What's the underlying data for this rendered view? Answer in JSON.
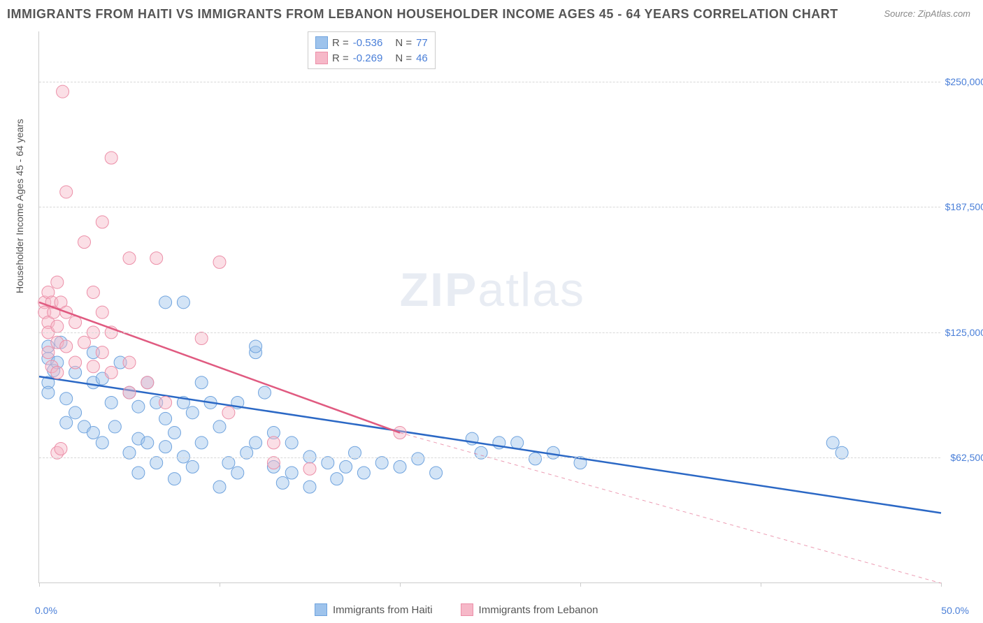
{
  "title": "IMMIGRANTS FROM HAITI VS IMMIGRANTS FROM LEBANON HOUSEHOLDER INCOME AGES 45 - 64 YEARS CORRELATION CHART",
  "source": "Source: ZipAtlas.com",
  "watermark": "ZIPatlas",
  "ylabel": "Householder Income Ages 45 - 64 years",
  "chart": {
    "type": "scatter",
    "xlim": [
      0,
      50
    ],
    "ylim": [
      0,
      275000
    ],
    "x_ticks": [
      0,
      10,
      20,
      30,
      40,
      50
    ],
    "y_gridlines": [
      62500,
      125000,
      187500,
      250000
    ],
    "y_tick_labels": [
      "$62,500",
      "$125,000",
      "$187,500",
      "$250,000"
    ],
    "x_min_label": "0.0%",
    "x_max_label": "50.0%",
    "background_color": "#ffffff",
    "grid_color": "#d8d8d8",
    "axis_color": "#cccccc",
    "marker_radius": 9,
    "marker_opacity": 0.45,
    "trend_line_width": 2.5,
    "series": [
      {
        "name": "Immigrants from Haiti",
        "fill_color": "#9ec3ec",
        "stroke_color": "#6fa3de",
        "line_color": "#2b68c5",
        "R": "-0.536",
        "N": "77",
        "trend": {
          "x1": 0,
          "y1": 103000,
          "x2": 50,
          "y2": 35000,
          "dash_after_x": 50
        },
        "points": [
          [
            0.5,
            112000
          ],
          [
            0.5,
            100000
          ],
          [
            0.5,
            95000
          ],
          [
            0.5,
            118000
          ],
          [
            0.8,
            106000
          ],
          [
            1.0,
            110000
          ],
          [
            1.2,
            120000
          ],
          [
            1.5,
            92000
          ],
          [
            1.5,
            80000
          ],
          [
            2.0,
            105000
          ],
          [
            2.0,
            85000
          ],
          [
            2.5,
            78000
          ],
          [
            3.0,
            100000
          ],
          [
            3.0,
            75000
          ],
          [
            3.0,
            115000
          ],
          [
            3.5,
            70000
          ],
          [
            3.5,
            102000
          ],
          [
            4.0,
            90000
          ],
          [
            4.2,
            78000
          ],
          [
            4.5,
            110000
          ],
          [
            5.0,
            95000
          ],
          [
            5.0,
            65000
          ],
          [
            5.5,
            88000
          ],
          [
            5.5,
            72000
          ],
          [
            5.5,
            55000
          ],
          [
            6.0,
            100000
          ],
          [
            6.0,
            70000
          ],
          [
            6.5,
            90000
          ],
          [
            6.5,
            60000
          ],
          [
            7.0,
            82000
          ],
          [
            7.0,
            68000
          ],
          [
            7.0,
            140000
          ],
          [
            7.5,
            75000
          ],
          [
            7.5,
            52000
          ],
          [
            8.0,
            90000
          ],
          [
            8.0,
            63000
          ],
          [
            8.0,
            140000
          ],
          [
            8.5,
            85000
          ],
          [
            8.5,
            58000
          ],
          [
            9.0,
            100000
          ],
          [
            9.0,
            70000
          ],
          [
            9.5,
            90000
          ],
          [
            10.0,
            78000
          ],
          [
            10.0,
            48000
          ],
          [
            10.5,
            60000
          ],
          [
            11.0,
            90000
          ],
          [
            11.0,
            55000
          ],
          [
            11.5,
            65000
          ],
          [
            12.0,
            115000
          ],
          [
            12.0,
            118000
          ],
          [
            12.0,
            70000
          ],
          [
            12.5,
            95000
          ],
          [
            13.0,
            58000
          ],
          [
            13.0,
            75000
          ],
          [
            13.5,
            50000
          ],
          [
            14.0,
            55000
          ],
          [
            14.0,
            70000
          ],
          [
            15.0,
            63000
          ],
          [
            15.0,
            48000
          ],
          [
            16.0,
            60000
          ],
          [
            16.5,
            52000
          ],
          [
            17.0,
            58000
          ],
          [
            17.5,
            65000
          ],
          [
            18.0,
            55000
          ],
          [
            19.0,
            60000
          ],
          [
            20.0,
            58000
          ],
          [
            21.0,
            62000
          ],
          [
            22.0,
            55000
          ],
          [
            24.0,
            72000
          ],
          [
            24.5,
            65000
          ],
          [
            25.5,
            70000
          ],
          [
            26.5,
            70000
          ],
          [
            27.5,
            62000
          ],
          [
            28.5,
            65000
          ],
          [
            30.0,
            60000
          ],
          [
            44.0,
            70000
          ],
          [
            44.5,
            65000
          ]
        ]
      },
      {
        "name": "Immigrants from Lebanon",
        "fill_color": "#f6b8c8",
        "stroke_color": "#ec8fa8",
        "line_color": "#e05a80",
        "R": "-0.269",
        "N": "46",
        "trend": {
          "x1": 0,
          "y1": 140000,
          "x2": 20,
          "y2": 75000,
          "dash_after_x": 20,
          "dash_x2": 50,
          "dash_y2": 0
        },
        "points": [
          [
            0.3,
            140000
          ],
          [
            0.3,
            135000
          ],
          [
            0.5,
            145000
          ],
          [
            0.5,
            130000
          ],
          [
            0.5,
            125000
          ],
          [
            0.5,
            115000
          ],
          [
            0.7,
            140000
          ],
          [
            0.7,
            108000
          ],
          [
            0.8,
            135000
          ],
          [
            1.0,
            128000
          ],
          [
            1.0,
            120000
          ],
          [
            1.0,
            105000
          ],
          [
            1.0,
            150000
          ],
          [
            1.0,
            65000
          ],
          [
            1.2,
            67000
          ],
          [
            1.2,
            140000
          ],
          [
            1.5,
            118000
          ],
          [
            1.5,
            135000
          ],
          [
            1.5,
            195000
          ],
          [
            1.3,
            245000
          ],
          [
            2.0,
            130000
          ],
          [
            2.0,
            110000
          ],
          [
            2.5,
            120000
          ],
          [
            2.5,
            170000
          ],
          [
            3.0,
            125000
          ],
          [
            3.0,
            108000
          ],
          [
            3.0,
            145000
          ],
          [
            3.5,
            115000
          ],
          [
            3.5,
            135000
          ],
          [
            3.5,
            180000
          ],
          [
            4.0,
            105000
          ],
          [
            4.0,
            212000
          ],
          [
            4.0,
            125000
          ],
          [
            5.0,
            110000
          ],
          [
            5.0,
            95000
          ],
          [
            5.0,
            162000
          ],
          [
            6.0,
            100000
          ],
          [
            6.5,
            162000
          ],
          [
            7.0,
            90000
          ],
          [
            9.0,
            122000
          ],
          [
            10.0,
            160000
          ],
          [
            10.5,
            85000
          ],
          [
            13.0,
            70000
          ],
          [
            13.0,
            60000
          ],
          [
            15.0,
            57000
          ],
          [
            20.0,
            75000
          ]
        ]
      }
    ],
    "legend_top_labels": {
      "R_prefix": "R =",
      "N_prefix": "N ="
    },
    "tick_label_color": "#4a7fd8",
    "axis_label_color": "#555555",
    "title_color": "#555555"
  }
}
